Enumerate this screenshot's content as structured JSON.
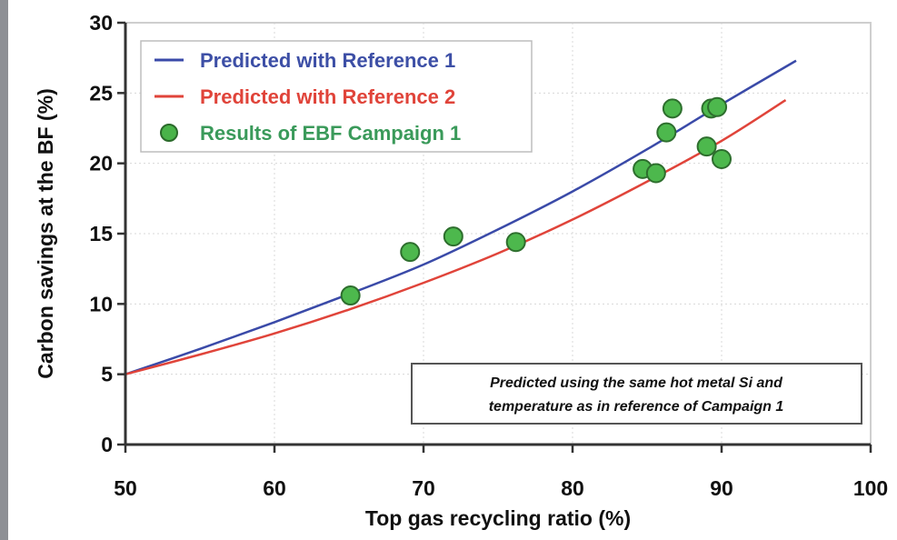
{
  "chart_data": {
    "type": "scatter",
    "title": "",
    "xlabel": "Top gas recycling ratio (%)",
    "ylabel": "Carbon savings at the BF (%)",
    "xlim": [
      50,
      100
    ],
    "ylim": [
      0,
      30
    ],
    "xticks": [
      50,
      60,
      70,
      80,
      90,
      100
    ],
    "yticks": [
      0,
      5,
      10,
      15,
      20,
      25,
      30
    ],
    "grid": true,
    "legend_position": "upper left",
    "series": [
      {
        "name": "Predicted with Reference 1",
        "type": "line",
        "color": "#3a4aa8",
        "x": [
          50,
          55,
          60,
          65,
          70,
          75,
          80,
          85,
          90,
          95
        ],
        "y": [
          5.0,
          6.8,
          8.7,
          10.7,
          12.8,
          15.3,
          18.0,
          21.0,
          24.2,
          27.3
        ]
      },
      {
        "name": "Predicted with Reference 2",
        "type": "line",
        "color": "#e0443a",
        "x": [
          50,
          55,
          60,
          65,
          70,
          75,
          80,
          85,
          90,
          94.3
        ],
        "y": [
          5.0,
          6.4,
          7.9,
          9.6,
          11.5,
          13.6,
          16.0,
          18.7,
          21.6,
          24.5
        ]
      },
      {
        "name": "Results of EBF Campaign 1",
        "type": "scatter",
        "color": "#3aa83a",
        "x": [
          65.1,
          69.1,
          72.0,
          76.2,
          84.7,
          85.6,
          86.3,
          86.7,
          89.0,
          89.3,
          89.7,
          90.0
        ],
        "y": [
          10.6,
          13.7,
          14.8,
          14.4,
          19.6,
          19.3,
          22.2,
          23.9,
          21.2,
          23.9,
          24.0,
          20.3
        ]
      }
    ],
    "annotations": [
      "Predicted using the same hot metal Si and temperature as in reference of Campaign 1"
    ]
  },
  "legend": {
    "items": [
      {
        "label": "Predicted with Reference 1",
        "color": "#3a4aa8",
        "text_color": "#3d4fa6"
      },
      {
        "label": "Predicted with Reference 2",
        "color": "#e0443a",
        "text_color": "#e0443a"
      },
      {
        "label": "Results of EBF Campaign 1",
        "color": "#3aa83a",
        "text_color": "#3a9a5a"
      }
    ]
  },
  "note": {
    "line1": "Predicted using the same hot metal Si and",
    "line2": "temperature as in reference of Campaign 1"
  },
  "axes": {
    "x_tick_labels": [
      "50",
      "60",
      "70",
      "80",
      "90",
      "100"
    ],
    "y_tick_labels": [
      "0",
      "5",
      "10",
      "15",
      "20",
      "25",
      "30"
    ],
    "xlabel": "Top gas recycling ratio (%)",
    "ylabel": "Carbon savings at the BF (%)"
  }
}
